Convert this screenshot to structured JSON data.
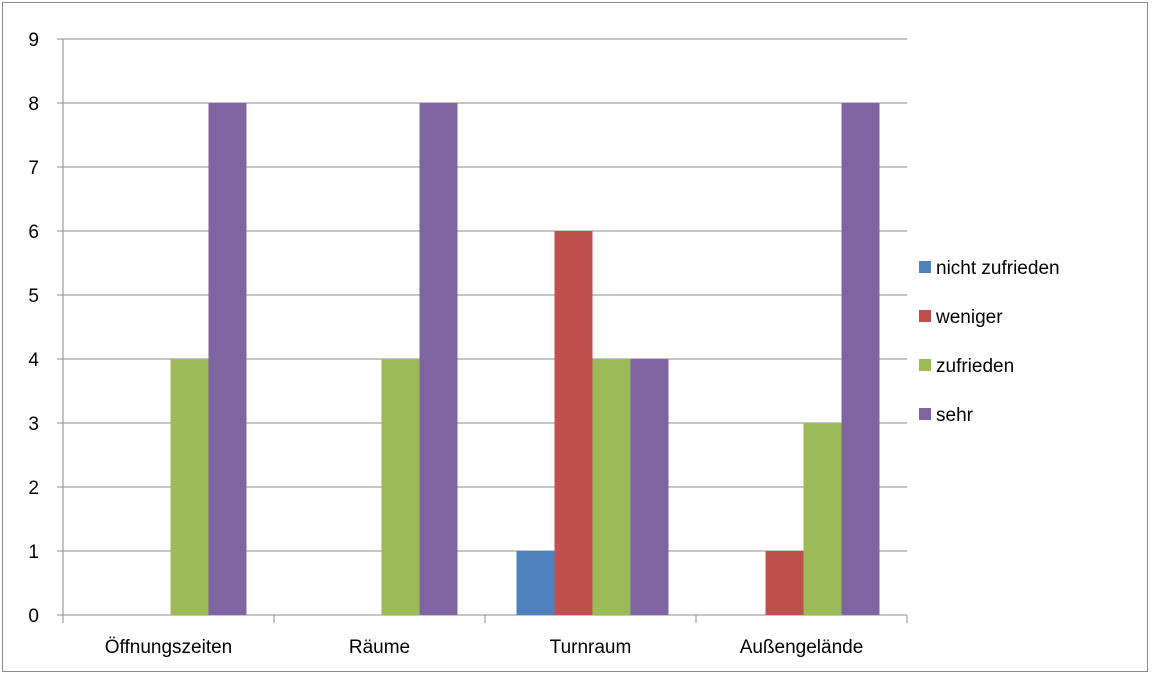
{
  "chart_data": {
    "type": "bar",
    "categories": [
      "Öffnungszeiten",
      "Räume",
      "Turnraum",
      "Außengelände"
    ],
    "series": [
      {
        "name": "nicht zufrieden",
        "color": "#4F81BD",
        "values": [
          0,
          0,
          1,
          0
        ]
      },
      {
        "name": "weniger",
        "color": "#C0504D",
        "values": [
          0,
          0,
          6,
          1
        ]
      },
      {
        "name": "zufrieden",
        "color": "#9BBB59",
        "values": [
          4,
          4,
          4,
          3
        ]
      },
      {
        "name": "sehr",
        "color": "#8064A2",
        "values": [
          8,
          8,
          4,
          8
        ]
      }
    ],
    "ylim": [
      0,
      9
    ],
    "yticks": [
      0,
      1,
      2,
      3,
      4,
      5,
      6,
      7,
      8,
      9
    ],
    "grid": true,
    "legend_position": "right",
    "title": "",
    "xlabel": "",
    "ylabel": ""
  }
}
